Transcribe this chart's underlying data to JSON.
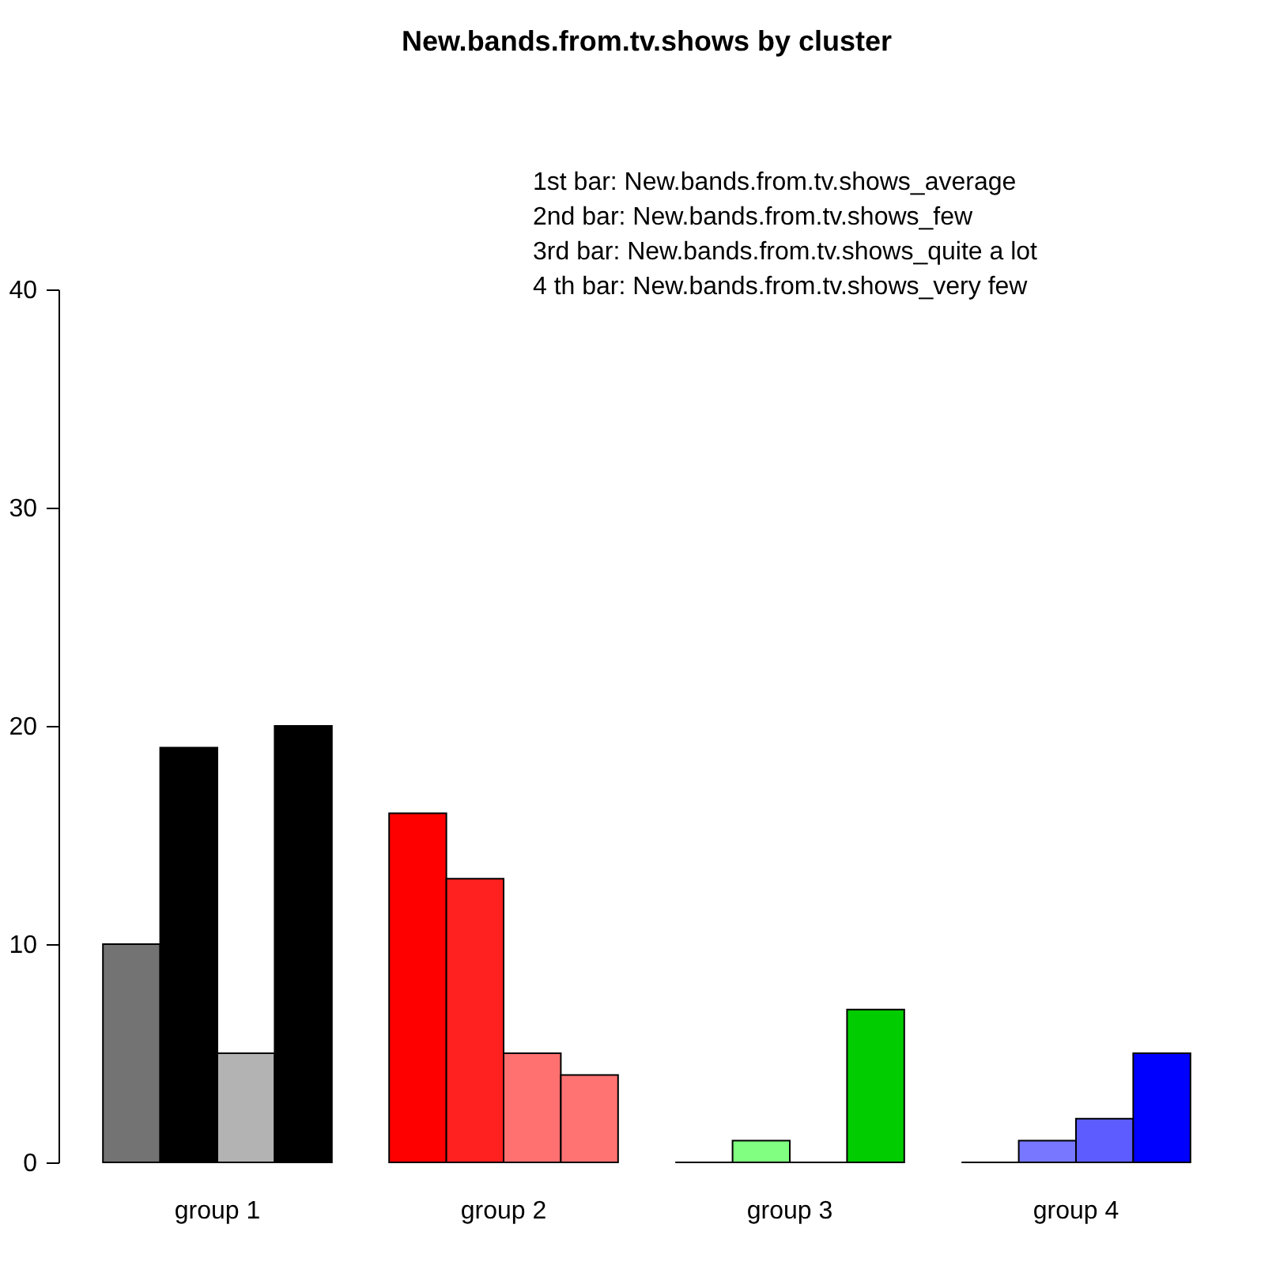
{
  "chart_data": {
    "type": "bar",
    "title": "New.bands.from.tv.shows by cluster",
    "categories": [
      "group 1",
      "group 2",
      "group 3",
      "group 4"
    ],
    "series": [
      {
        "colors": [
          "#737373",
          "#ff0000",
          "#000000",
          "#000000"
        ],
        "values": [
          10,
          16,
          0,
          0
        ]
      },
      {
        "colors": [
          "#000000",
          "#ff2020",
          "#80ff80",
          "#7777ff"
        ],
        "values": [
          19,
          13,
          1,
          1
        ]
      },
      {
        "colors": [
          "#b3b3b3",
          "#ff7070",
          "#000000",
          "#5c5cff"
        ],
        "values": [
          5,
          5,
          0,
          2
        ]
      },
      {
        "colors": [
          "#000000",
          "#ff7373",
          "#00cc00",
          "#0000ff"
        ],
        "values": [
          20,
          4,
          7,
          5
        ]
      }
    ],
    "annotations": [
      "1st bar: New.bands.from.tv.shows_average",
      "2nd bar: New.bands.from.tv.shows_few",
      "3rd bar: New.bands.from.tv.shows_quite a lot",
      "4 th bar: New.bands.from.tv.shows_very few"
    ],
    "ylim": [
      0,
      40
    ],
    "yticks": [
      0,
      10,
      20,
      30,
      40
    ],
    "grid": false
  }
}
